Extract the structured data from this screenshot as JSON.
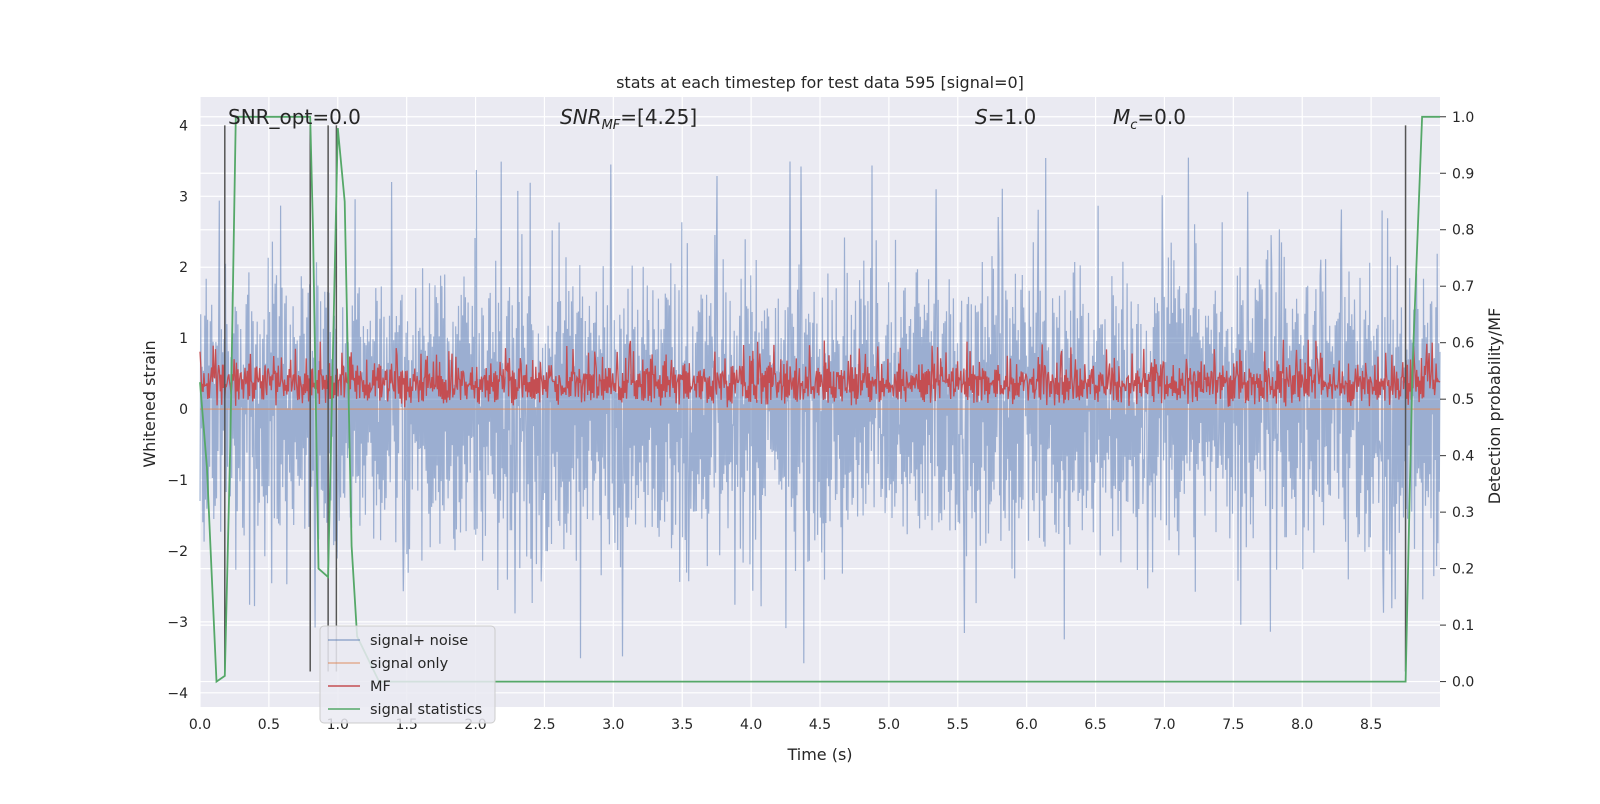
{
  "chart_data": {
    "type": "line",
    "title": "stats at each timestep for test data 595 [signal=0]",
    "xlabel": "Time (s)",
    "ylabel": "Whitened strain",
    "y2label": "Detection probability/MF",
    "xlim": [
      0.0,
      9.0
    ],
    "ylim": [
      -4.2,
      4.4
    ],
    "y2lim": [
      -0.045,
      1.035
    ],
    "x_ticks": [
      0.0,
      0.5,
      1.0,
      1.5,
      2.0,
      2.5,
      3.0,
      3.5,
      4.0,
      4.5,
      5.0,
      5.5,
      6.0,
      6.5,
      7.0,
      7.5,
      8.0,
      8.5
    ],
    "x_tick_labels": [
      "0.0",
      "0.5",
      "1.0",
      "1.5",
      "2.0",
      "2.5",
      "3.0",
      "3.5",
      "4.0",
      "4.5",
      "5.0",
      "5.5",
      "6.0",
      "6.5",
      "7.0",
      "7.5",
      "8.0",
      "8.5"
    ],
    "y_ticks": [
      -4,
      -3,
      -2,
      -1,
      0,
      1,
      2,
      3,
      4
    ],
    "y_tick_labels": [
      "−4",
      "−3",
      "−2",
      "−1",
      "0",
      "1",
      "2",
      "3",
      "4"
    ],
    "y2_ticks": [
      0.0,
      0.1,
      0.2,
      0.3,
      0.4,
      0.5,
      0.6,
      0.7,
      0.8,
      0.9,
      1.0
    ],
    "y2_tick_labels": [
      "0.0",
      "0.1",
      "0.2",
      "0.3",
      "0.4",
      "0.5",
      "0.6",
      "0.7",
      "0.8",
      "0.9",
      "1.0"
    ],
    "grid": true,
    "legend_position": "lower-left",
    "annotations": [
      {
        "text": "SNR_opt=0.0"
      },
      {
        "text": "SNR_MF=[4.25]"
      },
      {
        "text": "S=1.0"
      },
      {
        "text": "M_c=0.0"
      }
    ],
    "series": [
      {
        "name": "signal+ noise",
        "axis": "left",
        "color": "#4c72b0",
        "style": "dense noise band",
        "typical_range": [
          -1.5,
          1.7
        ],
        "peak_max": 4.0,
        "peak_min": -3.75
      },
      {
        "name": "signal only",
        "axis": "left",
        "color": "#dd8452",
        "x": [
          0.0,
          9.0
        ],
        "y": [
          0.0,
          0.0
        ]
      },
      {
        "name": "MF",
        "axis": "left",
        "color": "#c44e52",
        "style": "dense noise band",
        "typical_range": [
          0.0,
          0.6
        ],
        "peak_max": 0.98
      },
      {
        "name": "signal statistics",
        "axis": "right",
        "color": "#55a868",
        "x": [
          0.0,
          0.05,
          0.12,
          0.18,
          0.22,
          0.26,
          0.36,
          0.8,
          0.82,
          0.86,
          0.93,
          1.0,
          1.05,
          1.1,
          1.14,
          1.3,
          8.0,
          8.75,
          8.8,
          8.87,
          9.0
        ],
        "y": [
          0.53,
          0.38,
          0.0,
          0.01,
          0.42,
          1.0,
          1.0,
          1.0,
          0.8,
          0.2,
          0.185,
          0.98,
          0.85,
          0.24,
          0.08,
          0.0,
          0.0,
          0.0,
          0.55,
          1.0,
          1.0
        ]
      }
    ],
    "vertical_markers": {
      "color": "#555555",
      "x": [
        0.18,
        0.8,
        0.93,
        0.99,
        8.75
      ],
      "y_from": -3.7,
      "y_to": 4.0
    }
  }
}
